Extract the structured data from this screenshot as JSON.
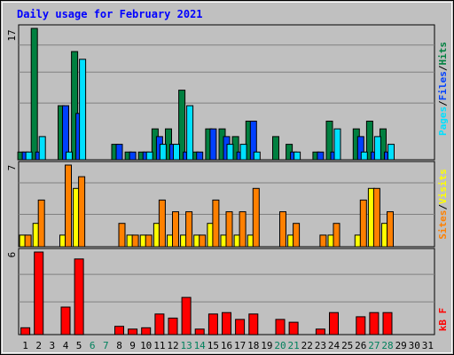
{
  "title": "Daily usage for February 2021",
  "colors": {
    "background": "#C0C0C0",
    "title": "#0000FF",
    "hits": "#008040",
    "files": "#0040FF",
    "pages": "#00E0FF",
    "visits": "#FFFF00",
    "sites": "#FF8000",
    "kbytes": "#FF0000",
    "weekend_label": "#00805C",
    "weekday_label": "#000000"
  },
  "chart_data": [
    {
      "type": "bar",
      "panel": "top",
      "ymax_label": "17",
      "ylim": [
        0,
        17
      ],
      "legend": [
        {
          "text": "Pages",
          "color": "#00E0FF"
        },
        {
          "text": "Files",
          "color": "#0040FF"
        },
        {
          "text": "Hits",
          "color": "#008040"
        }
      ],
      "legend_separator": "/",
      "categories": [
        "1",
        "2",
        "3",
        "4",
        "5",
        "6",
        "7",
        "8",
        "9",
        "10",
        "11",
        "12",
        "13",
        "14",
        "15",
        "16",
        "17",
        "18",
        "19",
        "20",
        "21",
        "22",
        "23",
        "24",
        "25",
        "26",
        "27",
        "28",
        "29",
        "30",
        "31"
      ],
      "series": [
        {
          "name": "Hits",
          "color": "#008040",
          "values": [
            1,
            17,
            0,
            7,
            14,
            0,
            0,
            2,
            1,
            1,
            4,
            4,
            9,
            1,
            4,
            4,
            3,
            5,
            0,
            3,
            2,
            0,
            1,
            5,
            0,
            4,
            5,
            4,
            0,
            0,
            0
          ]
        },
        {
          "name": "Files",
          "color": "#0040FF",
          "values": [
            1,
            1,
            0,
            7,
            6,
            0,
            0,
            2,
            1,
            1,
            3,
            2,
            1,
            1,
            4,
            3,
            1,
            5,
            0,
            0,
            1,
            0,
            1,
            1,
            0,
            3,
            1,
            1,
            0,
            0,
            0
          ]
        },
        {
          "name": "Pages",
          "color": "#00E0FF",
          "values": [
            1,
            3,
            0,
            1,
            13,
            0,
            0,
            0,
            0,
            1,
            2,
            2,
            7,
            0,
            0,
            2,
            2,
            1,
            0,
            0,
            1,
            0,
            0,
            4,
            0,
            1,
            3,
            2,
            0,
            0,
            0
          ]
        }
      ]
    },
    {
      "type": "bar",
      "panel": "middle",
      "ymax_label": "7",
      "ylim": [
        0,
        7
      ],
      "legend": [
        {
          "text": "Sites",
          "color": "#FF8000"
        },
        {
          "text": "Visits",
          "color": "#FFFF00"
        }
      ],
      "legend_separator": "/",
      "categories": [
        "1",
        "2",
        "3",
        "4",
        "5",
        "6",
        "7",
        "8",
        "9",
        "10",
        "11",
        "12",
        "13",
        "14",
        "15",
        "16",
        "17",
        "18",
        "19",
        "20",
        "21",
        "22",
        "23",
        "24",
        "25",
        "26",
        "27",
        "28",
        "29",
        "30",
        "31"
      ],
      "series": [
        {
          "name": "Visits",
          "color": "#FFFF00",
          "values": [
            1,
            2,
            0,
            1,
            5,
            0,
            0,
            0,
            1,
            1,
            2,
            1,
            1,
            1,
            2,
            1,
            1,
            1,
            0,
            0,
            1,
            0,
            0,
            1,
            0,
            1,
            5,
            2,
            0,
            0,
            0
          ]
        },
        {
          "name": "Sites",
          "color": "#FF8000",
          "values": [
            1,
            4,
            0,
            7,
            6,
            0,
            0,
            2,
            1,
            1,
            4,
            3,
            3,
            1,
            4,
            3,
            3,
            5,
            0,
            3,
            2,
            0,
            1,
            2,
            0,
            4,
            5,
            3,
            0,
            0,
            0
          ]
        }
      ]
    },
    {
      "type": "bar",
      "panel": "bottom",
      "ymax_label": "6",
      "ylim": [
        0,
        6
      ],
      "legend": [
        {
          "text": "kB F",
          "color": "#FF0000"
        }
      ],
      "legend_separator": "",
      "categories": [
        "1",
        "2",
        "3",
        "4",
        "5",
        "6",
        "7",
        "8",
        "9",
        "10",
        "11",
        "12",
        "13",
        "14",
        "15",
        "16",
        "17",
        "18",
        "19",
        "20",
        "21",
        "22",
        "23",
        "24",
        "25",
        "26",
        "27",
        "28",
        "29",
        "30",
        "31"
      ],
      "series": [
        {
          "name": "kB F",
          "color": "#FF0000",
          "values": [
            0.5,
            6,
            0,
            2,
            5.5,
            0,
            0,
            0.6,
            0.4,
            0.5,
            1.5,
            1.2,
            2.7,
            0.4,
            1.5,
            1.6,
            1.1,
            1.5,
            0,
            1.1,
            0.9,
            0,
            0.4,
            1.6,
            0,
            1.3,
            1.6,
            1.6,
            0,
            0,
            0
          ]
        }
      ]
    }
  ],
  "xaxis": {
    "labels": [
      "1",
      "2",
      "3",
      "4",
      "5",
      "6",
      "7",
      "8",
      "9",
      "10",
      "11",
      "12",
      "13",
      "14",
      "15",
      "16",
      "17",
      "18",
      "19",
      "20",
      "21",
      "22",
      "23",
      "24",
      "25",
      "26",
      "27",
      "28",
      "29",
      "30",
      "31"
    ],
    "weekend_days": [
      6,
      7,
      13,
      14,
      20,
      21,
      27,
      28
    ]
  }
}
